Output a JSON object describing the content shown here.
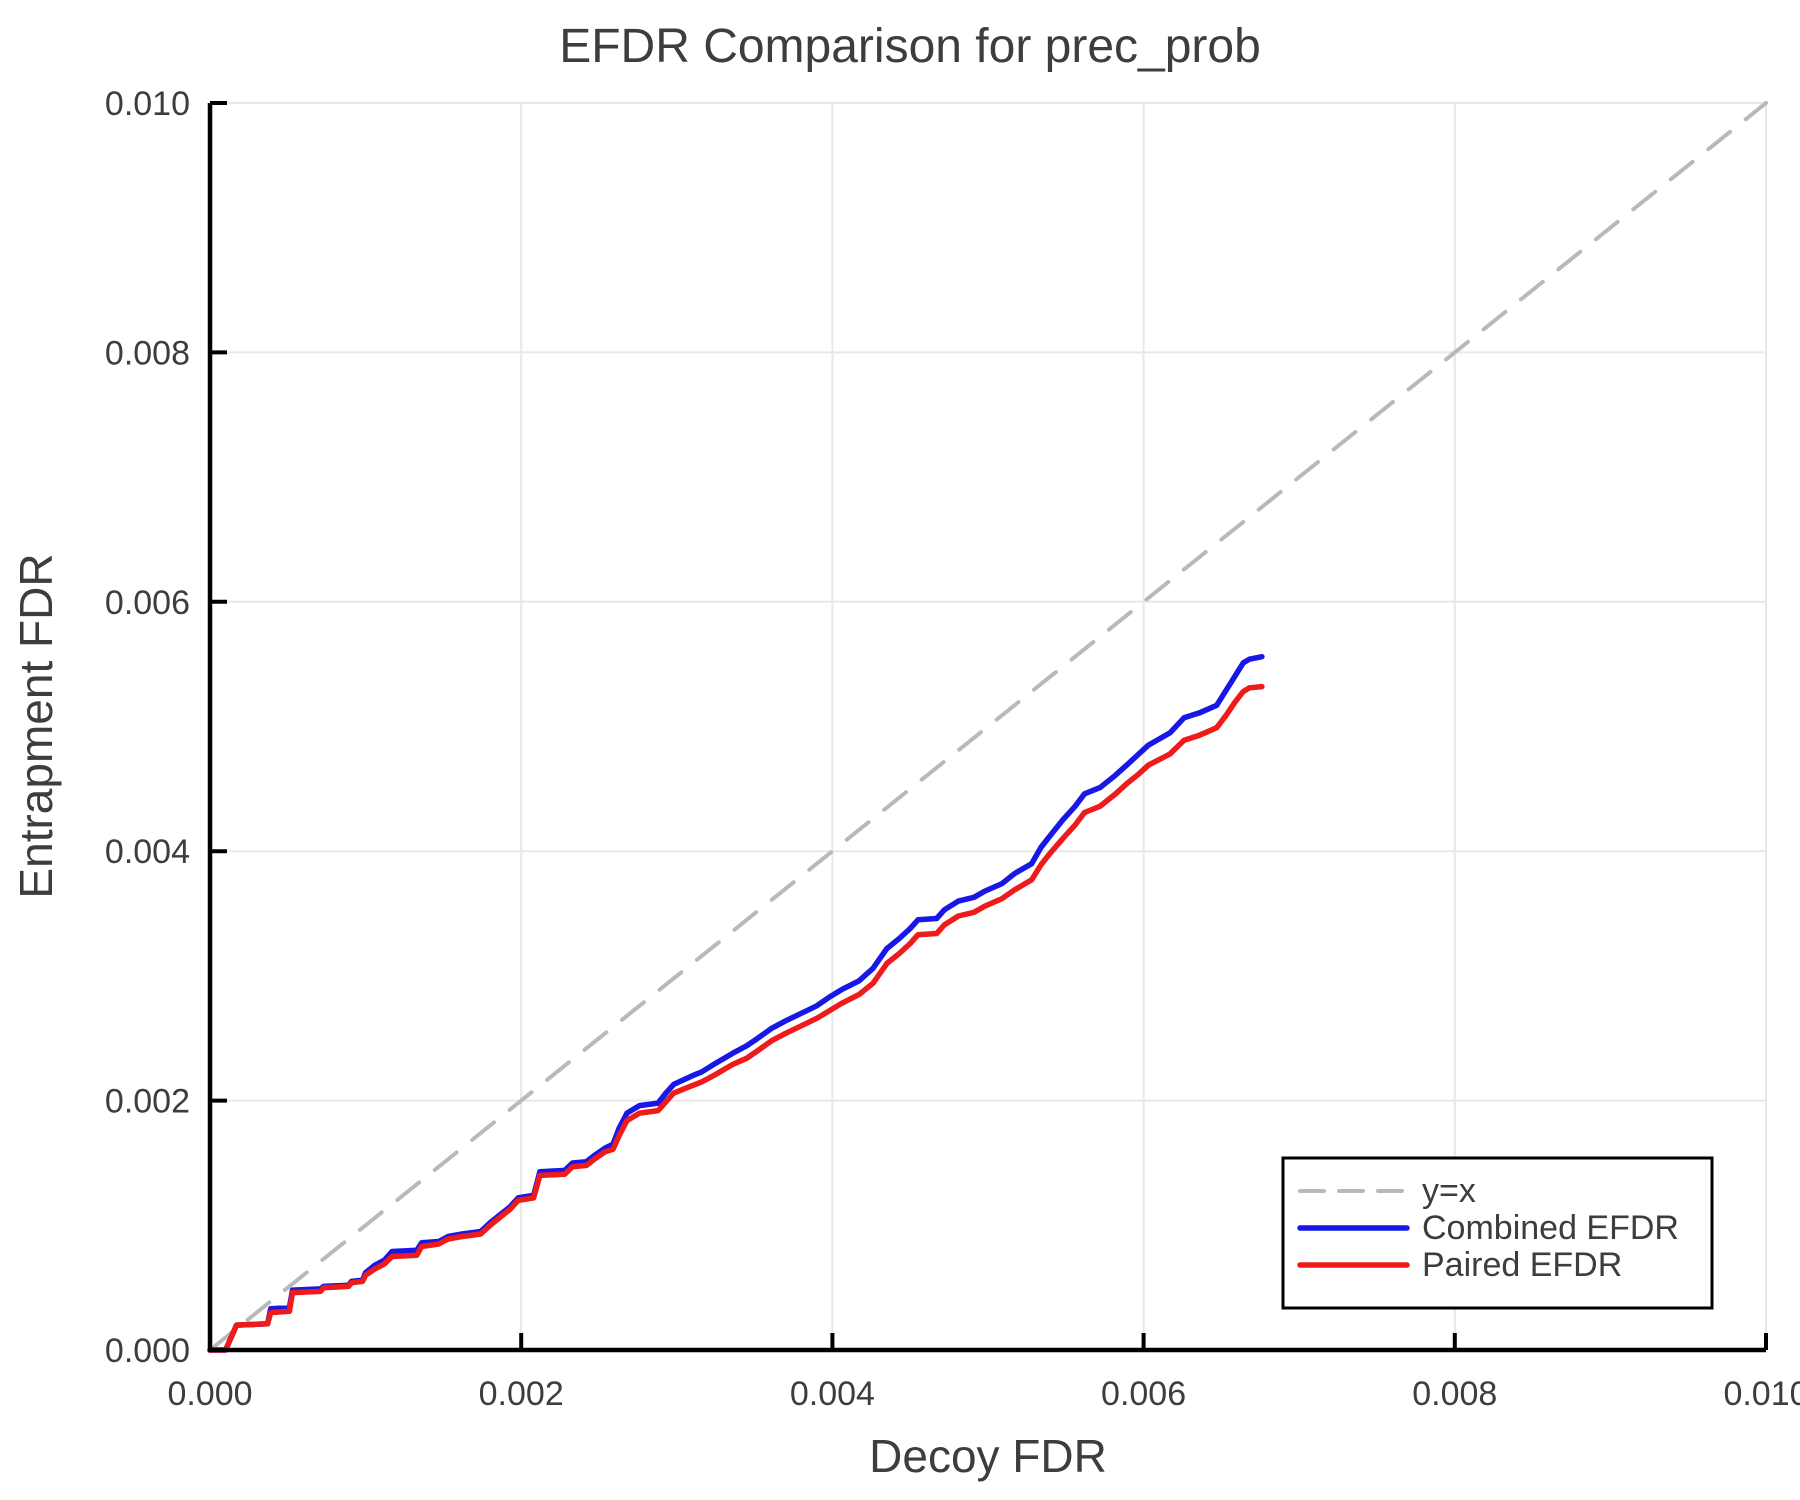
{
  "title": "EFDR Comparison for prec_prob",
  "x_axis": {
    "label": "Decoy FDR",
    "ticks": [
      "0.000",
      "0.002",
      "0.004",
      "0.006",
      "0.008",
      "0.010"
    ],
    "tick_values": [
      0.0,
      0.002,
      0.004,
      0.006,
      0.008,
      0.01
    ]
  },
  "y_axis": {
    "label": "Entrapment FDR",
    "ticks": [
      "0.000",
      "0.002",
      "0.004",
      "0.006",
      "0.008",
      "0.010"
    ],
    "tick_values": [
      0.0,
      0.002,
      0.004,
      0.006,
      0.008,
      0.01
    ]
  },
  "legend": {
    "entries": [
      {
        "label": "y=x",
        "color": "#b9b9b9",
        "dash": true
      },
      {
        "label": "Combined EFDR",
        "color": "#1717e6",
        "dash": false
      },
      {
        "label": "Paired EFDR",
        "color": "#ef1a1a",
        "dash": false
      }
    ]
  },
  "colors": {
    "text": "#3d3d3d",
    "grid": "#e8e8e8",
    "spine": "#000000",
    "identity": "#b9b9b9",
    "combined": "#1717e6",
    "paired": "#ef1a1a",
    "legend_border": "#000000",
    "background": "#ffffff"
  },
  "chart_data": {
    "type": "line",
    "title": "EFDR Comparison for prec_prob",
    "xlabel": "Decoy FDR",
    "ylabel": "Entrapment FDR",
    "xlim": [
      0.0,
      0.01
    ],
    "ylim": [
      0.0,
      0.01
    ],
    "grid": true,
    "legend_position": "lower right",
    "series": [
      {
        "name": "y=x",
        "style": "dashed",
        "color": "#b9b9b9",
        "points": [
          [
            0.0,
            0.0
          ],
          [
            0.01,
            0.01
          ]
        ]
      },
      {
        "name": "Combined EFDR",
        "style": "solid",
        "color": "#1717e6",
        "points": [
          [
            0.0,
            0.0
          ],
          [
            0.0001,
            0.0
          ],
          [
            0.00017,
            0.0002
          ],
          [
            0.00037,
            0.00021
          ],
          [
            0.00039,
            0.00033
          ],
          [
            0.00051,
            0.00034
          ],
          [
            0.00053,
            0.00048
          ],
          [
            0.00071,
            0.00049
          ],
          [
            0.00073,
            0.00051
          ],
          [
            0.00089,
            0.00052
          ],
          [
            0.00091,
            0.00055
          ],
          [
            0.00098,
            0.00056
          ],
          [
            0.001,
            0.00062
          ],
          [
            0.00106,
            0.00068
          ],
          [
            0.00112,
            0.00072
          ],
          [
            0.00117,
            0.00079
          ],
          [
            0.00133,
            0.0008
          ],
          [
            0.00136,
            0.00086
          ],
          [
            0.00147,
            0.00087
          ],
          [
            0.00153,
            0.00091
          ],
          [
            0.00162,
            0.00093
          ],
          [
            0.00174,
            0.00095
          ],
          [
            0.0018,
            0.00102
          ],
          [
            0.00186,
            0.00108
          ],
          [
            0.00193,
            0.00115
          ],
          [
            0.00198,
            0.00122
          ],
          [
            0.00208,
            0.00124
          ],
          [
            0.00212,
            0.00143
          ],
          [
            0.00228,
            0.00144
          ],
          [
            0.00233,
            0.0015
          ],
          [
            0.00242,
            0.00151
          ],
          [
            0.00247,
            0.00156
          ],
          [
            0.00254,
            0.00162
          ],
          [
            0.00259,
            0.00165
          ],
          [
            0.00263,
            0.00178
          ],
          [
            0.00268,
            0.0019
          ],
          [
            0.00276,
            0.00196
          ],
          [
            0.00288,
            0.00198
          ],
          [
            0.00293,
            0.00206
          ],
          [
            0.00298,
            0.00213
          ],
          [
            0.0031,
            0.0022
          ],
          [
            0.00316,
            0.00223
          ],
          [
            0.00325,
            0.0023
          ],
          [
            0.00336,
            0.00238
          ],
          [
            0.00345,
            0.00244
          ],
          [
            0.00352,
            0.0025
          ],
          [
            0.00361,
            0.00258
          ],
          [
            0.0037,
            0.00264
          ],
          [
            0.0038,
            0.0027
          ],
          [
            0.0039,
            0.00276
          ],
          [
            0.00398,
            0.00283
          ],
          [
            0.00406,
            0.00289
          ],
          [
            0.00417,
            0.00296
          ],
          [
            0.00426,
            0.00306
          ],
          [
            0.00435,
            0.00322
          ],
          [
            0.00443,
            0.0033
          ],
          [
            0.0045,
            0.00338
          ],
          [
            0.00455,
            0.00345
          ],
          [
            0.00467,
            0.00346
          ],
          [
            0.00472,
            0.00353
          ],
          [
            0.00481,
            0.0036
          ],
          [
            0.00491,
            0.00363
          ],
          [
            0.00498,
            0.00368
          ],
          [
            0.00509,
            0.00374
          ],
          [
            0.00517,
            0.00382
          ],
          [
            0.00528,
            0.0039
          ],
          [
            0.00534,
            0.00403
          ],
          [
            0.00539,
            0.00411
          ],
          [
            0.00548,
            0.00425
          ],
          [
            0.00556,
            0.00436
          ],
          [
            0.00562,
            0.00446
          ],
          [
            0.00572,
            0.00451
          ],
          [
            0.00582,
            0.00461
          ],
          [
            0.0059,
            0.0047
          ],
          [
            0.00597,
            0.00478
          ],
          [
            0.00603,
            0.00485
          ],
          [
            0.00617,
            0.00495
          ],
          [
            0.00626,
            0.00507
          ],
          [
            0.00636,
            0.00511
          ],
          [
            0.00647,
            0.00517
          ],
          [
            0.00653,
            0.00529
          ],
          [
            0.00659,
            0.00541
          ],
          [
            0.00664,
            0.00551
          ],
          [
            0.00668,
            0.00554
          ],
          [
            0.00676,
            0.00556
          ]
        ]
      },
      {
        "name": "Paired EFDR",
        "style": "solid",
        "color": "#ef1a1a",
        "points": [
          [
            0.0,
            0.0
          ],
          [
            0.0001,
            0.0
          ],
          [
            0.00017,
            0.0002
          ],
          [
            0.00037,
            0.00021
          ],
          [
            0.00039,
            0.0003
          ],
          [
            0.00051,
            0.00031
          ],
          [
            0.00053,
            0.00046
          ],
          [
            0.00071,
            0.00047
          ],
          [
            0.00073,
            0.0005
          ],
          [
            0.00089,
            0.00051
          ],
          [
            0.00091,
            0.00054
          ],
          [
            0.00098,
            0.00055
          ],
          [
            0.001,
            0.0006
          ],
          [
            0.00106,
            0.00065
          ],
          [
            0.00112,
            0.00069
          ],
          [
            0.00117,
            0.00075
          ],
          [
            0.00133,
            0.00076
          ],
          [
            0.00136,
            0.00083
          ],
          [
            0.00147,
            0.00085
          ],
          [
            0.00153,
            0.00089
          ],
          [
            0.00162,
            0.00091
          ],
          [
            0.00174,
            0.00093
          ],
          [
            0.0018,
            0.001
          ],
          [
            0.00186,
            0.00106
          ],
          [
            0.00193,
            0.00113
          ],
          [
            0.00198,
            0.0012
          ],
          [
            0.00208,
            0.00122
          ],
          [
            0.00212,
            0.0014
          ],
          [
            0.00228,
            0.00141
          ],
          [
            0.00233,
            0.00147
          ],
          [
            0.00242,
            0.00148
          ],
          [
            0.00247,
            0.00153
          ],
          [
            0.00254,
            0.00159
          ],
          [
            0.00259,
            0.00161
          ],
          [
            0.00263,
            0.00172
          ],
          [
            0.00268,
            0.00184
          ],
          [
            0.00276,
            0.0019
          ],
          [
            0.00288,
            0.00192
          ],
          [
            0.00293,
            0.00199
          ],
          [
            0.00298,
            0.00206
          ],
          [
            0.0031,
            0.00212
          ],
          [
            0.00316,
            0.00215
          ],
          [
            0.00325,
            0.00221
          ],
          [
            0.00336,
            0.00229
          ],
          [
            0.00345,
            0.00234
          ],
          [
            0.00352,
            0.0024
          ],
          [
            0.00361,
            0.00248
          ],
          [
            0.0037,
            0.00254
          ],
          [
            0.0038,
            0.0026
          ],
          [
            0.0039,
            0.00266
          ],
          [
            0.00398,
            0.00272
          ],
          [
            0.00406,
            0.00278
          ],
          [
            0.00417,
            0.00285
          ],
          [
            0.00426,
            0.00294
          ],
          [
            0.00435,
            0.0031
          ],
          [
            0.00443,
            0.00318
          ],
          [
            0.0045,
            0.00326
          ],
          [
            0.00455,
            0.00333
          ],
          [
            0.00467,
            0.00334
          ],
          [
            0.00472,
            0.00341
          ],
          [
            0.00481,
            0.00348
          ],
          [
            0.00491,
            0.00351
          ],
          [
            0.00498,
            0.00356
          ],
          [
            0.00509,
            0.00362
          ],
          [
            0.00517,
            0.00369
          ],
          [
            0.00528,
            0.00377
          ],
          [
            0.00534,
            0.00389
          ],
          [
            0.00539,
            0.00397
          ],
          [
            0.00548,
            0.0041
          ],
          [
            0.00556,
            0.00421
          ],
          [
            0.00562,
            0.00431
          ],
          [
            0.00572,
            0.00436
          ],
          [
            0.00582,
            0.00446
          ],
          [
            0.0059,
            0.00455
          ],
          [
            0.00597,
            0.00462
          ],
          [
            0.00603,
            0.00469
          ],
          [
            0.00617,
            0.00478
          ],
          [
            0.00626,
            0.00489
          ],
          [
            0.00636,
            0.00493
          ],
          [
            0.00647,
            0.00499
          ],
          [
            0.00653,
            0.00509
          ],
          [
            0.00659,
            0.0052
          ],
          [
            0.00664,
            0.00528
          ],
          [
            0.00668,
            0.00531
          ],
          [
            0.00676,
            0.00532
          ]
        ]
      }
    ]
  }
}
